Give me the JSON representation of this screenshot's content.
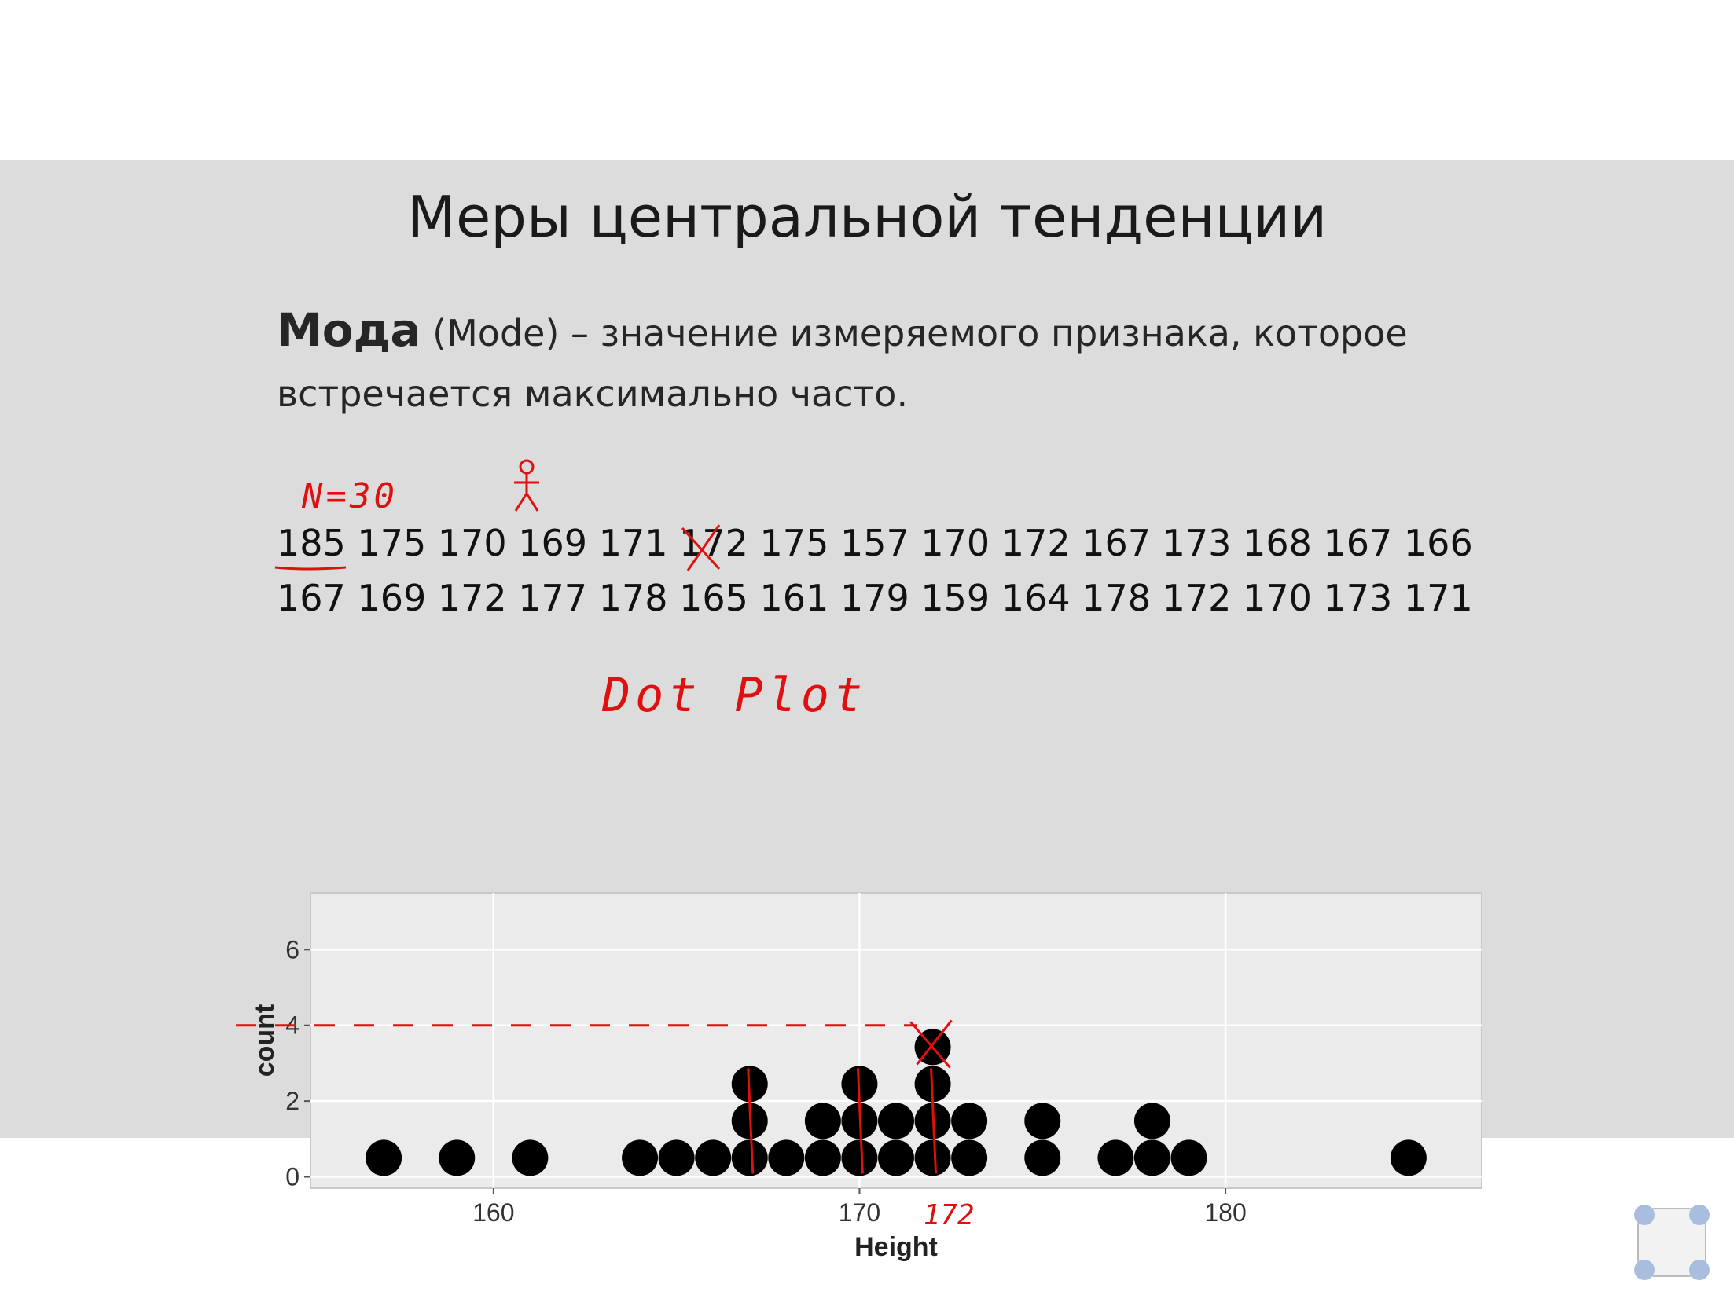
{
  "slide": {
    "title": "Меры центральной тенденции",
    "definition": {
      "term": "Мода",
      "rest_line1": " (Mode) – значение измеряемого признака, которое",
      "line2": "встречается максимально часто."
    },
    "data_row1": "185 175 170 169 171 172 175 157 170 172 167 173 168 167 166",
    "data_row2": "167 169 172 177 178 165 161 179 159 164 178 172 170 173 171",
    "annotations": {
      "n_note": "N=30",
      "dot_plot_note": "Dot Plot",
      "mode_note": "172"
    }
  },
  "colors": {
    "slide_bg": "#dcdcdc",
    "panel_bg": "#ebebeb",
    "annotation": "#e01010",
    "dot": "#000000"
  },
  "chart_data": {
    "type": "scatter",
    "subtype": "dot-plot",
    "xlabel": "Height",
    "ylabel": "count",
    "xlim": [
      155,
      187
    ],
    "ylim": [
      -0.3,
      7.5
    ],
    "x_ticks": [
      160,
      170,
      180
    ],
    "y_ticks": [
      0,
      2,
      4,
      6
    ],
    "grid": true,
    "columns": [
      {
        "x": 157,
        "count": 1
      },
      {
        "x": 159,
        "count": 1
      },
      {
        "x": 161,
        "count": 1
      },
      {
        "x": 164,
        "count": 1
      },
      {
        "x": 165,
        "count": 1
      },
      {
        "x": 166,
        "count": 1
      },
      {
        "x": 167,
        "count": 3
      },
      {
        "x": 168,
        "count": 1
      },
      {
        "x": 169,
        "count": 2
      },
      {
        "x": 170,
        "count": 3
      },
      {
        "x": 171,
        "count": 2
      },
      {
        "x": 172,
        "count": 4
      },
      {
        "x": 173,
        "count": 2
      },
      {
        "x": 175,
        "count": 2
      },
      {
        "x": 177,
        "count": 1
      },
      {
        "x": 178,
        "count": 2
      },
      {
        "x": 179,
        "count": 1
      },
      {
        "x": 185,
        "count": 1
      }
    ]
  }
}
